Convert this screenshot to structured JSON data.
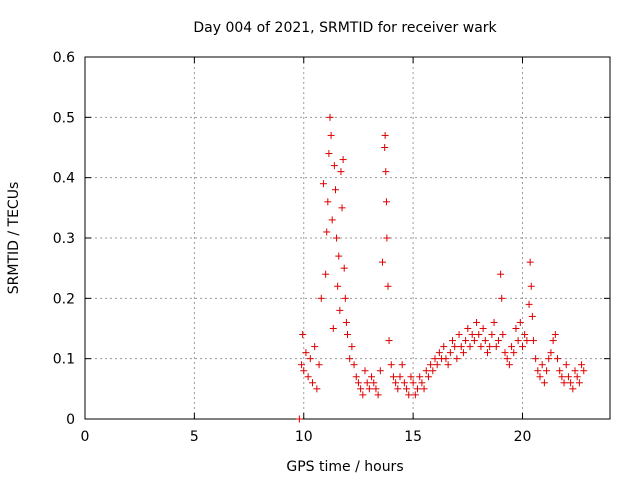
{
  "chart_data": {
    "type": "scatter",
    "title": "Day 004 of 2021, SRMTID for receiver wark",
    "xlabel": "GPS time / hours",
    "ylabel": "SRMTID / TECUs",
    "xlim": [
      0,
      24
    ],
    "ylim": [
      0,
      0.6
    ],
    "xticks": [
      0,
      5,
      10,
      15,
      20
    ],
    "xtick_labels": [
      "0",
      "5",
      "10",
      "15",
      "20"
    ],
    "yticks": [
      0,
      0.1,
      0.2,
      0.3,
      0.4,
      0.5,
      0.6
    ],
    "ytick_labels": [
      "0",
      "0.1",
      "0.2",
      "0.3",
      "0.4",
      "0.5",
      "0.6"
    ],
    "grid": true,
    "marker": "plus",
    "color": "#dd0000",
    "series": [
      {
        "name": "SRMTID",
        "x": [
          9.8,
          9.9,
          9.95,
          10.0,
          10.1,
          10.2,
          10.3,
          10.4,
          10.5,
          10.6,
          10.7,
          10.8,
          10.9,
          11.0,
          11.05,
          11.1,
          11.15,
          11.2,
          11.25,
          11.3,
          11.35,
          11.4,
          11.45,
          11.5,
          11.55,
          11.6,
          11.65,
          11.7,
          11.75,
          11.8,
          11.85,
          11.9,
          11.95,
          12.0,
          12.1,
          12.2,
          12.3,
          12.4,
          12.5,
          12.6,
          12.7,
          12.8,
          12.9,
          13.0,
          13.1,
          13.2,
          13.3,
          13.4,
          13.5,
          13.6,
          13.7,
          13.72,
          13.75,
          13.78,
          13.8,
          13.85,
          13.9,
          14.0,
          14.1,
          14.2,
          14.3,
          14.4,
          14.5,
          14.6,
          14.7,
          14.8,
          14.9,
          15.0,
          15.1,
          15.2,
          15.3,
          15.4,
          15.5,
          15.6,
          15.7,
          15.8,
          15.9,
          16.0,
          16.1,
          16.2,
          16.3,
          16.4,
          16.5,
          16.6,
          16.7,
          16.8,
          16.9,
          17.0,
          17.1,
          17.2,
          17.3,
          17.4,
          17.5,
          17.6,
          17.7,
          17.8,
          17.9,
          18.0,
          18.1,
          18.2,
          18.3,
          18.4,
          18.5,
          18.6,
          18.7,
          18.8,
          18.9,
          19.0,
          19.05,
          19.1,
          19.2,
          19.3,
          19.4,
          19.5,
          19.6,
          19.7,
          19.8,
          19.9,
          20.0,
          20.1,
          20.2,
          20.3,
          20.35,
          20.4,
          20.45,
          20.5,
          20.6,
          20.7,
          20.8,
          20.9,
          21.0,
          21.1,
          21.2,
          21.3,
          21.4,
          21.5,
          21.6,
          21.7,
          21.8,
          21.9,
          22.0,
          22.1,
          22.2,
          22.3,
          22.4,
          22.5,
          22.6,
          22.7,
          22.8
        ],
        "y": [
          0.0,
          0.09,
          0.14,
          0.08,
          0.11,
          0.07,
          0.1,
          0.06,
          0.12,
          0.05,
          0.09,
          0.2,
          0.39,
          0.24,
          0.31,
          0.36,
          0.44,
          0.5,
          0.47,
          0.33,
          0.15,
          0.42,
          0.38,
          0.3,
          0.22,
          0.27,
          0.18,
          0.41,
          0.35,
          0.43,
          0.25,
          0.2,
          0.16,
          0.14,
          0.1,
          0.12,
          0.09,
          0.07,
          0.06,
          0.05,
          0.04,
          0.08,
          0.06,
          0.05,
          0.07,
          0.06,
          0.05,
          0.04,
          0.08,
          0.26,
          0.45,
          0.47,
          0.41,
          0.36,
          0.3,
          0.22,
          0.13,
          0.09,
          0.07,
          0.06,
          0.05,
          0.07,
          0.09,
          0.06,
          0.05,
          0.04,
          0.07,
          0.06,
          0.04,
          0.05,
          0.07,
          0.06,
          0.05,
          0.08,
          0.07,
          0.09,
          0.08,
          0.1,
          0.09,
          0.11,
          0.1,
          0.12,
          0.1,
          0.09,
          0.11,
          0.13,
          0.12,
          0.1,
          0.14,
          0.12,
          0.11,
          0.13,
          0.15,
          0.12,
          0.14,
          0.13,
          0.16,
          0.14,
          0.12,
          0.15,
          0.13,
          0.11,
          0.12,
          0.14,
          0.16,
          0.12,
          0.13,
          0.24,
          0.2,
          0.14,
          0.11,
          0.1,
          0.09,
          0.12,
          0.11,
          0.15,
          0.13,
          0.16,
          0.12,
          0.14,
          0.13,
          0.19,
          0.26,
          0.22,
          0.17,
          0.13,
          0.1,
          0.08,
          0.07,
          0.09,
          0.06,
          0.08,
          0.1,
          0.11,
          0.13,
          0.14,
          0.1,
          0.08,
          0.07,
          0.06,
          0.09,
          0.07,
          0.06,
          0.05,
          0.08,
          0.07,
          0.06,
          0.09,
          0.08
        ]
      }
    ]
  }
}
